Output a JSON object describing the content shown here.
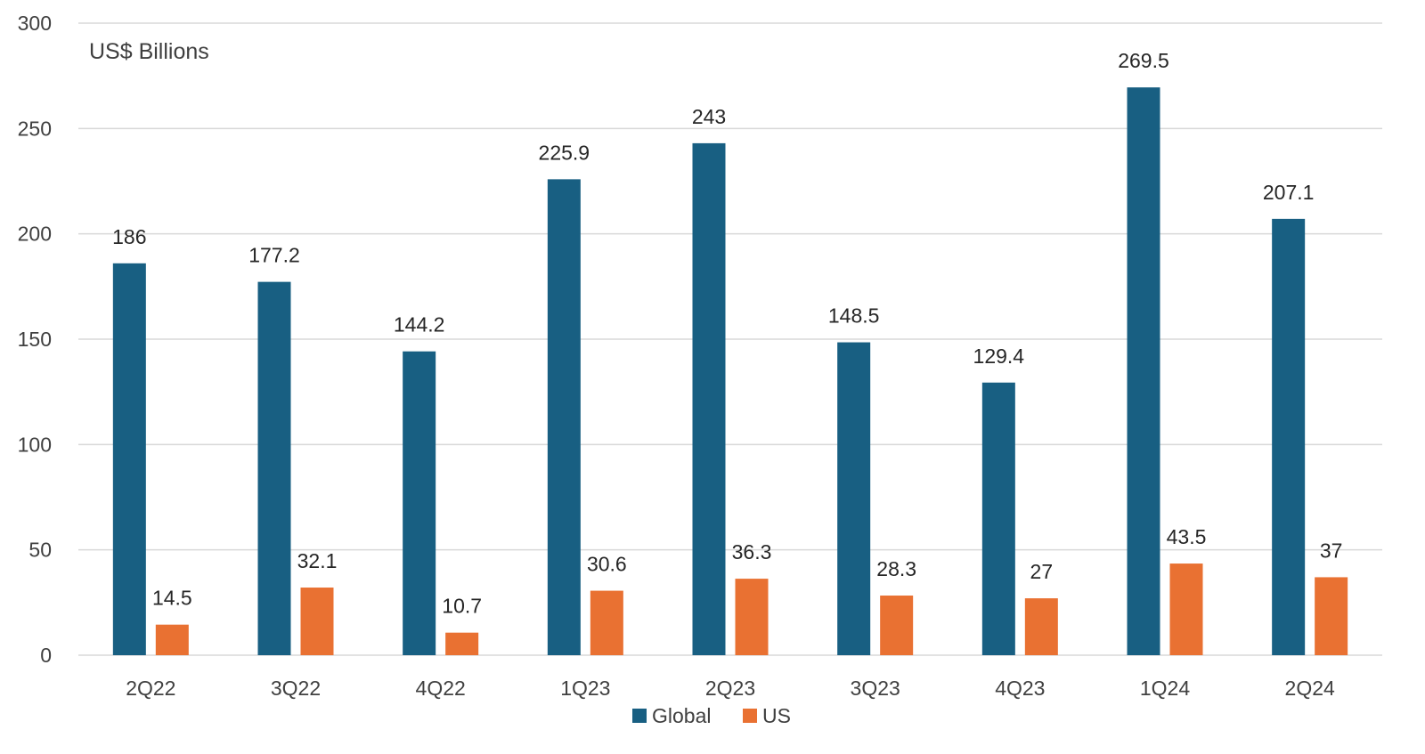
{
  "chart_data": {
    "type": "bar",
    "unit_label": "US$ Billions",
    "categories": [
      "2Q22",
      "3Q22",
      "4Q22",
      "1Q23",
      "2Q23",
      "3Q23",
      "4Q23",
      "1Q24",
      "2Q24"
    ],
    "series": [
      {
        "name": "Global",
        "color": "#185f82",
        "values": [
          186,
          177.2,
          144.2,
          225.9,
          243,
          148.5,
          129.4,
          269.5,
          207.1
        ]
      },
      {
        "name": "US",
        "color": "#e97132",
        "values": [
          14.5,
          32.1,
          10.7,
          30.6,
          36.3,
          28.3,
          27,
          43.5,
          37
        ]
      }
    ],
    "ylim": [
      0,
      300
    ],
    "yticks": [
      0,
      50,
      100,
      150,
      200,
      250,
      300
    ],
    "grid": true,
    "legend_position": "bottom"
  }
}
